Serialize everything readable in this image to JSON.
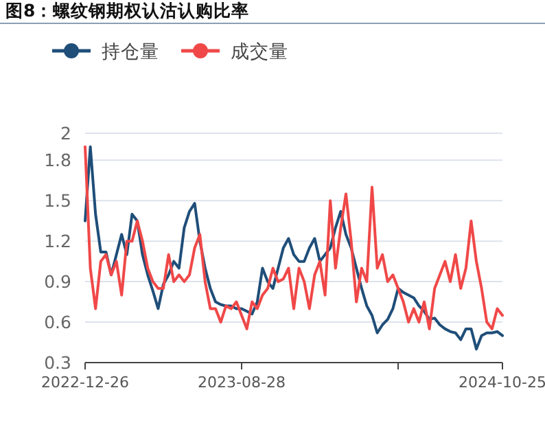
{
  "chart_data": {
    "type": "line",
    "title": "图8：螺纹钢期权认沽认购比率",
    "categories": [
      "2022-12-26",
      null,
      null,
      null,
      null,
      null,
      null,
      null,
      null,
      null,
      null,
      null,
      null,
      null,
      null,
      null,
      null,
      null,
      null,
      null,
      null,
      null,
      null,
      null,
      null,
      null,
      null,
      null,
      null,
      null,
      "2023-08-28",
      null,
      null,
      null,
      null,
      null,
      null,
      null,
      null,
      null,
      null,
      null,
      null,
      null,
      null,
      null,
      null,
      null,
      null,
      null,
      null,
      null,
      null,
      null,
      null,
      null,
      null,
      null,
      null,
      null,
      null,
      null,
      null,
      null,
      null,
      null,
      null,
      null,
      null,
      null,
      null,
      null,
      null,
      null,
      null,
      null,
      null,
      null,
      null,
      null,
      "2024-10-25"
    ],
    "series": [
      {
        "name": "持仓量",
        "color": "#1f4e79",
        "values": [
          1.35,
          1.9,
          1.4,
          1.12,
          1.12,
          0.95,
          1.1,
          1.25,
          1.1,
          1.4,
          1.35,
          1.1,
          0.95,
          0.83,
          0.7,
          0.88,
          0.95,
          1.05,
          1.0,
          1.3,
          1.42,
          1.48,
          1.2,
          1.0,
          0.85,
          0.75,
          0.73,
          0.72,
          0.72,
          0.7,
          0.7,
          0.68,
          0.66,
          0.75,
          1.0,
          0.9,
          0.85,
          1.0,
          1.15,
          1.22,
          1.1,
          1.05,
          1.05,
          1.15,
          1.22,
          1.05,
          1.1,
          1.15,
          1.3,
          1.42,
          1.25,
          1.15,
          1.0,
          0.85,
          0.72,
          0.65,
          0.52,
          0.58,
          0.62,
          0.7,
          0.85,
          0.82,
          0.8,
          0.78,
          0.72,
          0.68,
          0.62,
          0.63,
          0.58,
          0.55,
          0.53,
          0.52,
          0.47,
          0.55,
          0.55,
          0.4,
          0.5,
          0.52,
          0.52,
          0.53,
          0.5
        ]
      },
      {
        "name": "成交量",
        "color": "#f04848",
        "values": [
          1.9,
          1.0,
          0.7,
          1.05,
          1.1,
          0.95,
          1.05,
          0.8,
          1.2,
          1.2,
          1.35,
          1.2,
          1.0,
          0.9,
          0.85,
          0.85,
          1.1,
          0.9,
          0.95,
          0.9,
          0.95,
          1.15,
          1.25,
          0.9,
          0.7,
          0.7,
          0.6,
          0.72,
          0.7,
          0.75,
          0.65,
          0.55,
          0.75,
          0.7,
          0.8,
          0.85,
          1.0,
          0.9,
          0.92,
          1.0,
          0.7,
          1.0,
          0.9,
          0.7,
          0.95,
          1.05,
          0.8,
          1.5,
          1.0,
          1.3,
          1.55,
          1.2,
          0.75,
          1.0,
          0.9,
          1.6,
          1.0,
          1.1,
          0.9,
          0.95,
          0.85,
          0.75,
          0.6,
          0.7,
          0.6,
          0.75,
          0.55,
          0.85,
          0.95,
          1.05,
          0.9,
          1.1,
          0.85,
          1.0,
          1.35,
          1.05,
          0.85,
          0.6,
          0.55,
          0.7,
          0.65
        ]
      }
    ],
    "ylim": [
      0.3,
      2
    ],
    "yticks": [
      0.3,
      0.6,
      0.9,
      1.2,
      1.5,
      1.8,
      2
    ],
    "grid": "y",
    "legend": "top left",
    "marker": "none",
    "line_style": "solid"
  }
}
